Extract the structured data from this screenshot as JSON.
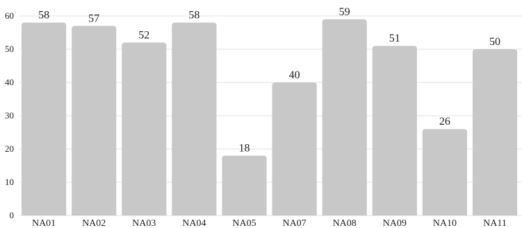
{
  "chart_data": {
    "type": "bar",
    "categories": [
      "NA01",
      "NA02",
      "NA03",
      "NA04",
      "NA05",
      "NA07",
      "NA08",
      "NA09",
      "NA10",
      "NA11"
    ],
    "values": [
      58,
      57,
      52,
      58,
      18,
      40,
      59,
      51,
      26,
      50
    ],
    "data_labels": [
      "58",
      "57",
      "52",
      "58",
      "18",
      "40",
      "59",
      "51",
      "26",
      "50"
    ],
    "title": "",
    "xlabel": "",
    "ylabel": "",
    "ylim": [
      0,
      60
    ],
    "yticks": [
      "0",
      "10",
      "20",
      "30",
      "40",
      "50",
      "60"
    ],
    "grid": true,
    "legend": "none",
    "bar_color": "#c8c8c8",
    "grid_color": "#e3e3e3"
  }
}
